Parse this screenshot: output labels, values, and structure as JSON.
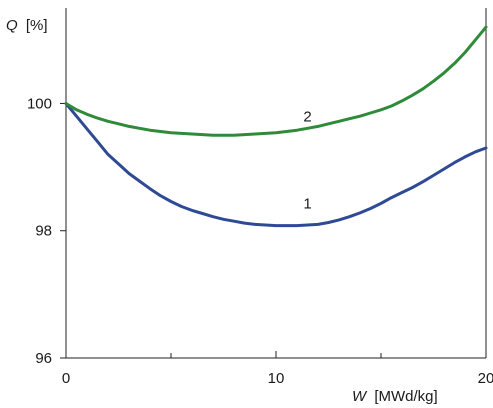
{
  "chart_data": {
    "type": "line",
    "title": "",
    "ylabel": "Q [%]",
    "ylabel_symbol": "Q",
    "ylabel_unit": "[%]",
    "xlabel": "W [MWd/kg]",
    "xlabel_symbol": "W",
    "xlabel_unit": "[MWd/kg]",
    "xlim": [
      0,
      20
    ],
    "ylim": [
      96,
      101.5
    ],
    "xticks": [
      0,
      10,
      20
    ],
    "xtick_labels": [
      "0",
      "10",
      "20"
    ],
    "xminor": [
      5,
      15
    ],
    "yticks": [
      96,
      98,
      100
    ],
    "ytick_labels": [
      "96",
      "98",
      "100"
    ],
    "grid": false,
    "legend": "none",
    "series": [
      {
        "name": "1",
        "label_at": [
          11.5,
          98.35
        ],
        "color": "#2e4a94",
        "x": [
          0,
          0.5,
          1,
          1.5,
          2,
          2.5,
          3,
          3.5,
          4,
          4.5,
          5,
          5.5,
          6,
          6.5,
          7,
          7.5,
          8,
          8.5,
          9,
          9.5,
          10,
          10.5,
          11,
          11.5,
          12,
          12.5,
          13,
          13.5,
          14,
          14.5,
          15,
          15.5,
          16,
          16.5,
          17,
          17.5,
          18,
          18.5,
          19,
          19.5,
          20
        ],
        "y": [
          100.0,
          99.8,
          99.6,
          99.4,
          99.2,
          99.05,
          98.9,
          98.78,
          98.66,
          98.55,
          98.46,
          98.38,
          98.32,
          98.27,
          98.22,
          98.18,
          98.15,
          98.12,
          98.1,
          98.09,
          98.08,
          98.08,
          98.08,
          98.09,
          98.1,
          98.13,
          98.17,
          98.22,
          98.28,
          98.35,
          98.43,
          98.52,
          98.6,
          98.68,
          98.77,
          98.87,
          98.97,
          99.07,
          99.16,
          99.24,
          99.3
        ]
      },
      {
        "name": "2",
        "label_at": [
          11.5,
          99.72
        ],
        "color": "#2f8a3a",
        "x": [
          0,
          0.5,
          1,
          1.5,
          2,
          2.5,
          3,
          3.5,
          4,
          4.5,
          5,
          5.5,
          6,
          6.5,
          7,
          7.5,
          8,
          8.5,
          9,
          9.5,
          10,
          10.5,
          11,
          11.5,
          12,
          12.5,
          13,
          13.5,
          14,
          14.5,
          15,
          15.5,
          16,
          16.5,
          17,
          17.5,
          18,
          18.5,
          19,
          19.5,
          20
        ],
        "y": [
          100.0,
          99.9,
          99.83,
          99.77,
          99.72,
          99.68,
          99.64,
          99.61,
          99.58,
          99.56,
          99.54,
          99.53,
          99.52,
          99.51,
          99.5,
          99.5,
          99.5,
          99.51,
          99.52,
          99.53,
          99.54,
          99.56,
          99.58,
          99.61,
          99.64,
          99.68,
          99.72,
          99.76,
          99.8,
          99.85,
          99.9,
          99.96,
          100.04,
          100.13,
          100.23,
          100.35,
          100.48,
          100.63,
          100.8,
          101.0,
          101.2
        ]
      }
    ]
  }
}
